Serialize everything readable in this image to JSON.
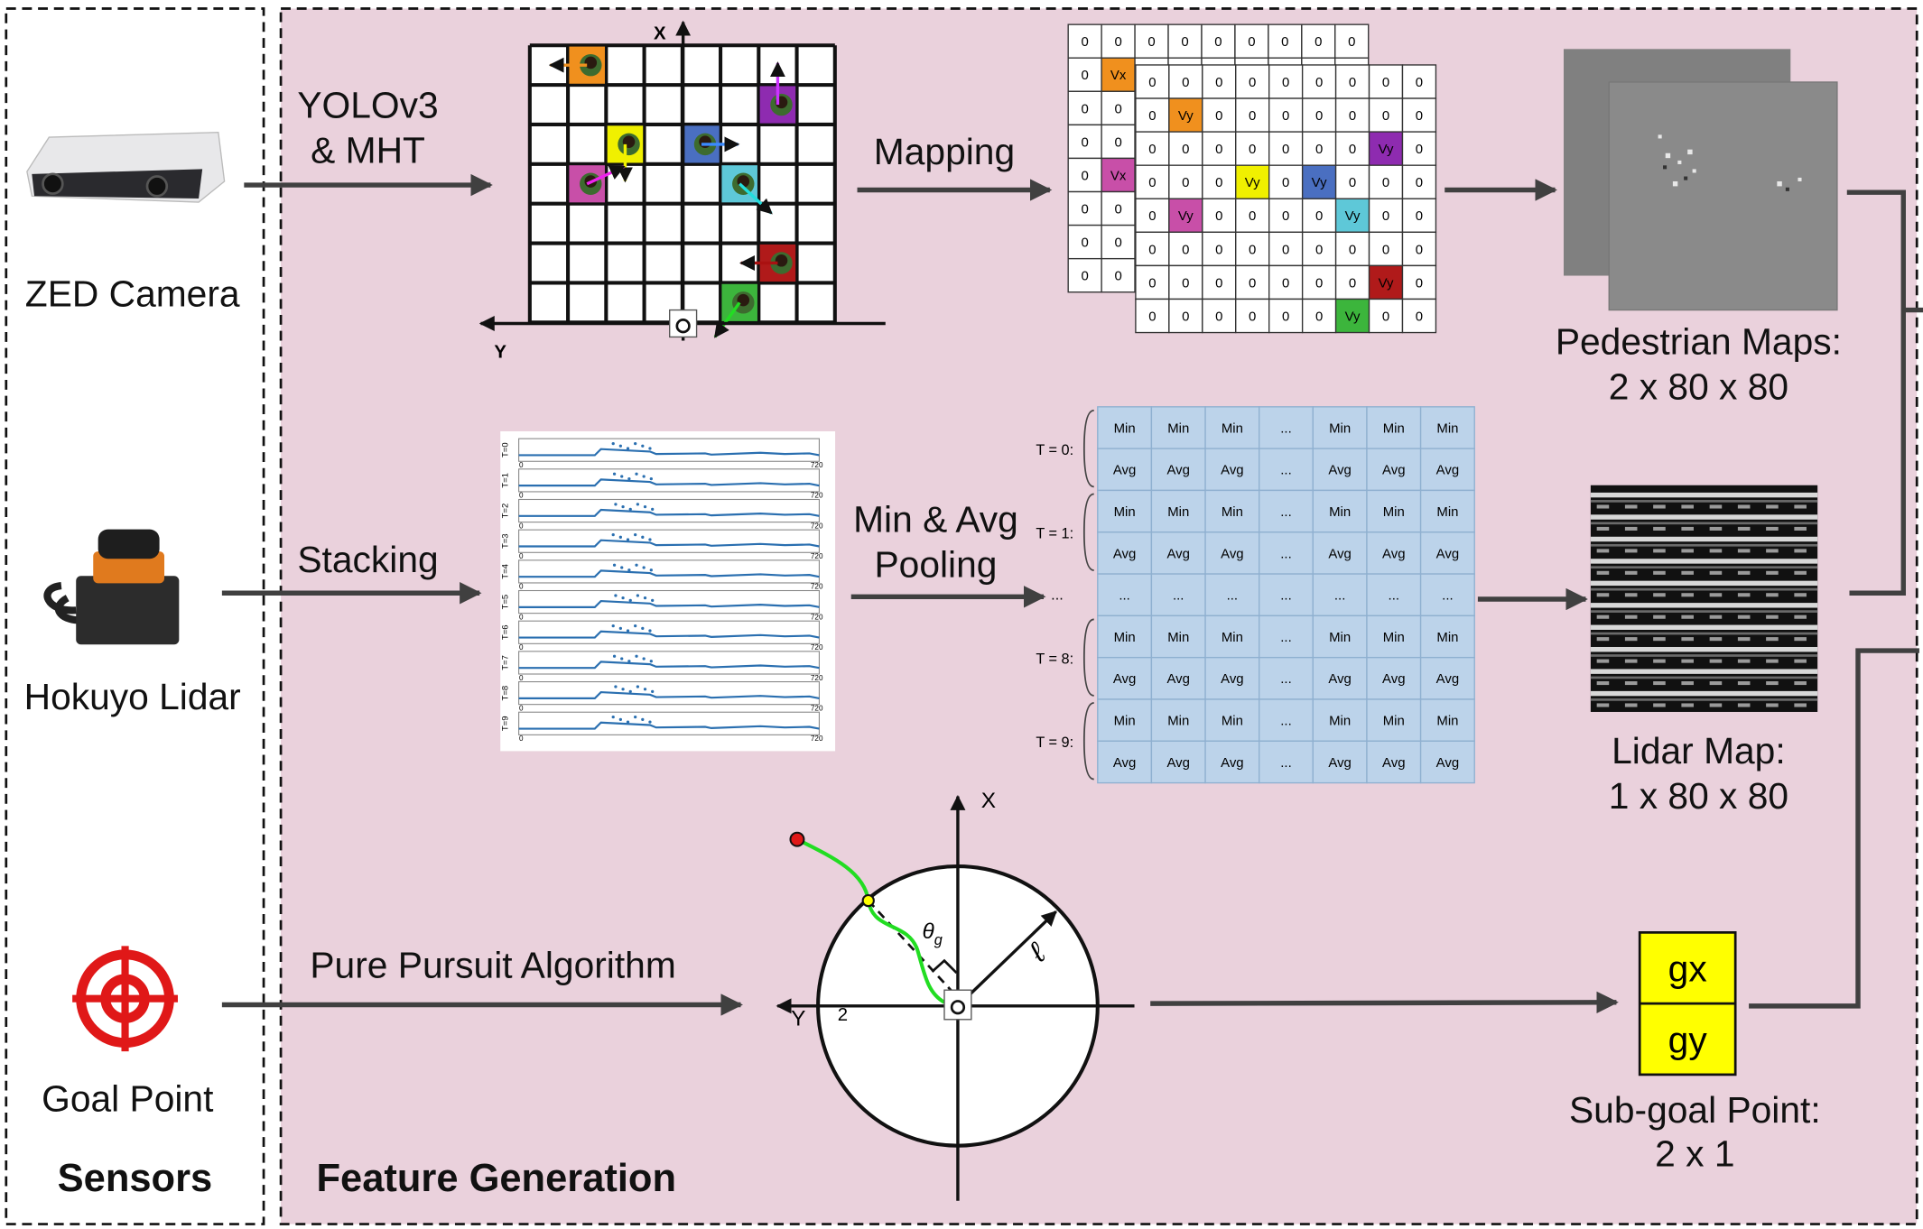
{
  "sensors": {
    "title": "Sensors",
    "zed_camera": "ZED Camera",
    "hokuyo_lidar": "Hokuyo Lidar",
    "goal_point": "Goal Point"
  },
  "feature_generation": {
    "title": "Feature Generation",
    "yolo_line1": "YOLOv3",
    "yolo_line2": "& MHT",
    "mapping": "Mapping",
    "stacking": "Stacking",
    "pooling_line1": "Min & Avg",
    "pooling_line2": "Pooling",
    "pure_pursuit": "Pure Pursuit Algorithm"
  },
  "detection_grid": {
    "x_axis": "X",
    "y_axis": "Y"
  },
  "velocity_grid": {
    "zero": "0",
    "vx": "Vx",
    "vy": "Vy",
    "colors": [
      "#f0901e",
      "#c84fa8",
      "#f0f000",
      "#4a6fc1",
      "#5ec8d8",
      "#8e2bb0",
      "#b01a1a",
      "#3cb53c"
    ]
  },
  "lidar_stack": {
    "rows": [
      "T=0",
      "T=1",
      "T=2",
      "T=3",
      "T=4",
      "T=5",
      "T=6",
      "T=7",
      "T=8",
      "T=9"
    ],
    "x_start": "0",
    "x_end": "720"
  },
  "pooling_table": {
    "min": "Min",
    "avg": "Avg",
    "ellipsis": "...",
    "row_labels": [
      "T = 0:",
      "T = 1:",
      "...",
      "T = 8:",
      "T = 9:"
    ]
  },
  "outputs": {
    "pedestrian_maps_line1": "Pedestrian Maps:",
    "pedestrian_maps_line2": "2 x 80 x 80",
    "lidar_map_line1": "Lidar Map:",
    "lidar_map_line2": "1 x 80 x 80",
    "subgoal_gx": "gx",
    "subgoal_gy": "gy",
    "subgoal_line1": "Sub-goal Point:",
    "subgoal_line2": "2 x 1"
  },
  "pure_pursuit_diagram": {
    "x_axis": "X",
    "y_axis": "Y",
    "theta": "θ",
    "theta_sub": "g",
    "radius": "ℓ",
    "tick": "2"
  },
  "colors": {
    "panel_background": "#ead1dc",
    "arrow": "#404040",
    "path": "#22dd22",
    "subgoal_box": "#ffff00",
    "table_cell": "#bcd3ea"
  }
}
